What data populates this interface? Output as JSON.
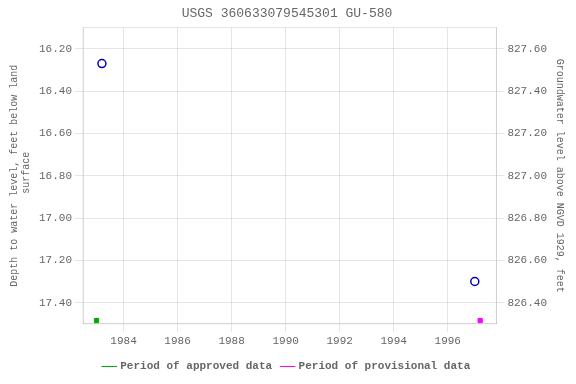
{
  "chart_data": {
    "type": "scatter",
    "title": "USGS 360633079545301 GU-580",
    "ylabel": "Depth to water level, feet below land\n surface",
    "y2label": "Groundwater level above NGVD 1929, feet",
    "xlim": [
      1982.5,
      1997.8
    ],
    "xticks": [
      1984,
      1986,
      1988,
      1990,
      1992,
      1994,
      1996
    ],
    "ylim": [
      17.5,
      16.1
    ],
    "yticks": [
      {
        "value": 16.2,
        "label": "16.20"
      },
      {
        "value": 16.4,
        "label": "16.40"
      },
      {
        "value": 16.6,
        "label": "16.60"
      },
      {
        "value": 16.8,
        "label": "16.80"
      },
      {
        "value": 17.0,
        "label": "17.00"
      },
      {
        "value": 17.2,
        "label": "17.20"
      },
      {
        "value": 17.4,
        "label": "17.40"
      }
    ],
    "y2lim": [
      826.3,
      827.7
    ],
    "y2ticks": [
      {
        "value": 827.6,
        "label": "827.60"
      },
      {
        "value": 827.4,
        "label": "827.40"
      },
      {
        "value": 827.2,
        "label": "827.20"
      },
      {
        "value": 827.0,
        "label": "827.00"
      },
      {
        "value": 826.8,
        "label": "826.80"
      },
      {
        "value": 826.6,
        "label": "826.60"
      },
      {
        "value": 826.4,
        "label": "826.40"
      }
    ],
    "grid": true,
    "legend": "bottom",
    "series": [
      {
        "color": "#0000bb",
        "marker": "open-circle",
        "x": [
          1983.2,
          1997.0
        ],
        "values": [
          16.27,
          17.3
        ]
      },
      {
        "name": "Period of approved data",
        "color": "#00aa00",
        "marker": "square",
        "x": [
          1983.0
        ],
        "values": [
          17.485
        ]
      },
      {
        "name": "Period of provisional data",
        "color": "#ff00ff",
        "marker": "square",
        "x": [
          1997.2
        ],
        "values": [
          17.485
        ]
      }
    ]
  }
}
